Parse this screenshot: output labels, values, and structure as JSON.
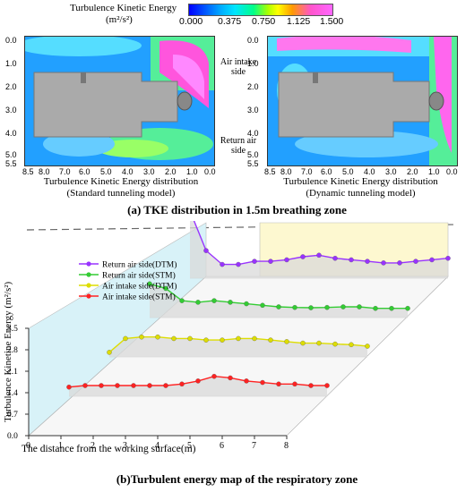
{
  "colorbar": {
    "title": "Turbulence Kinetic Energy",
    "unit": "(m²/s²)",
    "ticks": [
      "0.000",
      "0.375",
      "0.750",
      "1.125",
      "1.500"
    ]
  },
  "panel_a": {
    "y_ticks": [
      "0.0",
      "1.0",
      "2.0",
      "3.0",
      "4.0",
      "5.0",
      "5.5"
    ],
    "x_ticks": [
      "8.5",
      "8.0",
      "7.0",
      "6.0",
      "5.0",
      "4.0",
      "3.0",
      "2.0",
      "1.0",
      "0.0"
    ],
    "left_caption_1": "Turbulence Kinetic Energy distribution",
    "left_caption_2": "(Standard tunneling model)",
    "right_caption_1": "Turbulence Kinetic Energy distribution",
    "right_caption_2": "(Dynamic tunneling model)",
    "air_intake_label": "Air intake side",
    "return_air_label": "Return air side",
    "title": "(a) TKE distribution in 1.5m breathing zone"
  },
  "chart_data": {
    "type": "line",
    "title": "(b)Turbulent energy map of the respiratory zone",
    "xlabel": "The distance from the working surface(m)",
    "ylabel": "Turbulence Kinetine  Energy  (m²/s²)",
    "x_ticks": [
      "0",
      "1",
      "2",
      "3",
      "4",
      "5",
      "6",
      "7",
      "8"
    ],
    "y_ticks": [
      "0.0",
      "0.7",
      "1.4",
      "2.1",
      "2.8",
      "3.5"
    ],
    "xlim": [
      0,
      8
    ],
    "ylim": [
      0,
      3.5
    ],
    "legend_position": "top-left",
    "x": [
      0,
      0.5,
      1,
      1.5,
      2,
      2.5,
      3,
      3.5,
      4,
      4.5,
      5,
      5.5,
      6,
      6.5,
      7,
      7.5,
      8
    ],
    "series": [
      {
        "name": "Return air side(DTM)",
        "color": "#9933ff",
        "values": [
          2.2,
          0.9,
          0.45,
          0.45,
          0.55,
          0.55,
          0.6,
          0.7,
          0.75,
          0.65,
          0.6,
          0.55,
          0.5,
          0.5,
          0.55,
          0.6,
          0.65
        ]
      },
      {
        "name": "Return air side(STM)",
        "color": "#33cc33",
        "values": [
          1.1,
          0.95,
          0.55,
          0.5,
          0.55,
          0.5,
          0.45,
          0.4,
          0.35,
          0.33,
          0.32,
          0.33,
          0.35,
          0.35,
          0.3,
          0.3,
          0.3
        ]
      },
      {
        "name": "Air intake side(DTM)",
        "color": "#dddd00",
        "values": [
          0.15,
          0.6,
          0.65,
          0.65,
          0.6,
          0.6,
          0.55,
          0.55,
          0.6,
          0.6,
          0.55,
          0.5,
          0.45,
          0.45,
          0.42,
          0.4,
          0.35
        ]
      },
      {
        "name": "Air intake side(STM)",
        "color": "#ff2222",
        "values": [
          0.3,
          0.35,
          0.35,
          0.35,
          0.35,
          0.35,
          0.35,
          0.4,
          0.5,
          0.65,
          0.6,
          0.5,
          0.45,
          0.4,
          0.4,
          0.35,
          0.35
        ]
      }
    ]
  }
}
